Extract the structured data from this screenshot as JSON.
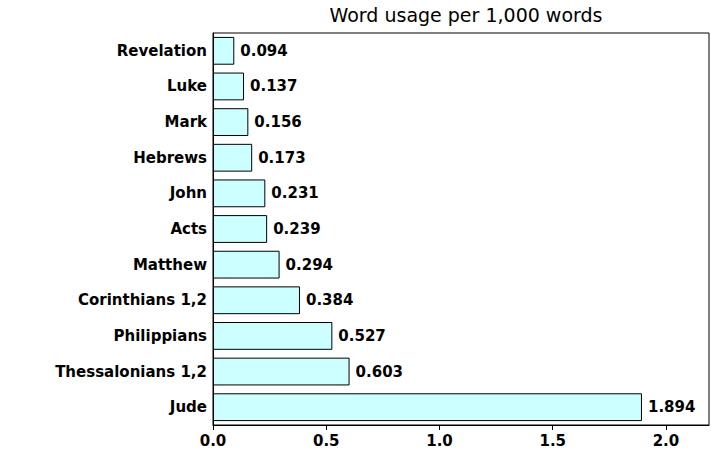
{
  "chart_data": {
    "type": "bar",
    "title": "Word usage per 1,000 words",
    "orientation": "horizontal",
    "categories": [
      "Revelation",
      "Luke",
      "Mark",
      "Hebrews",
      "John",
      "Acts",
      "Matthew",
      "Corinthians 1,2",
      "Philippians",
      "Thessalonians 1,2",
      "Jude"
    ],
    "values": [
      0.094,
      0.137,
      0.156,
      0.173,
      0.231,
      0.239,
      0.294,
      0.384,
      0.527,
      0.603,
      1.894
    ],
    "color": "#ccffff",
    "xlim": [
      0,
      2.19
    ],
    "xticks": [
      {
        "value": 0,
        "label": "0.0"
      },
      0.5,
      {
        "value": 1,
        "label": "1.0"
      },
      1.5,
      {
        "value": 2,
        "label": "2.0"
      }
    ],
    "grid": false,
    "data_labels": true
  }
}
